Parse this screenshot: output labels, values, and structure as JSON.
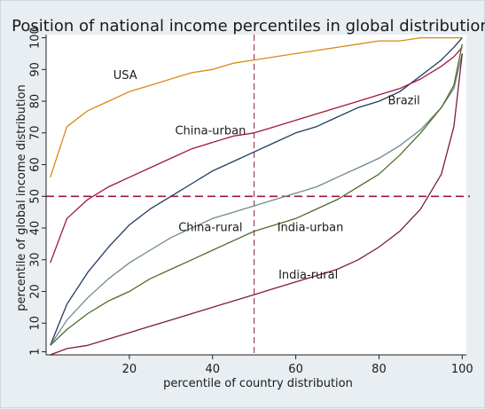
{
  "chart_data": {
    "type": "line",
    "title": "Position of national income percentiles in global distribution",
    "xlabel": "percentile of country distribution",
    "ylabel": "percentile of global income distribution",
    "xlim": [
      0,
      101
    ],
    "ylim": [
      0,
      101
    ],
    "x_ticks": [
      20,
      40,
      60,
      80,
      100
    ],
    "y_ticks": [
      1,
      10,
      20,
      30,
      40,
      50,
      60,
      70,
      80,
      90,
      100
    ],
    "x_tick_labels": [
      "20",
      "40",
      "60",
      "80",
      "100"
    ],
    "y_tick_labels": [
      "1",
      "10",
      "20",
      "30",
      "40",
      "50",
      "60",
      "70",
      "80",
      "90",
      "100"
    ],
    "grid": false,
    "reference_lines": [
      {
        "orientation": "vertical",
        "value": 50,
        "color": "#8b1a4a",
        "style": "dashed"
      },
      {
        "orientation": "horizontal",
        "value": 50,
        "color": "#a0163f",
        "style": "dashed"
      }
    ],
    "x": [
      1,
      5,
      10,
      15,
      20,
      25,
      30,
      35,
      40,
      45,
      50,
      55,
      60,
      65,
      70,
      75,
      80,
      85,
      90,
      95,
      98,
      100
    ],
    "series": [
      {
        "name": "USA",
        "color": "#d98a14",
        "values": [
          56,
          72,
          77,
          80,
          83,
          85,
          87,
          89,
          90,
          92,
          93,
          94,
          95,
          96,
          97,
          98,
          99,
          99,
          100,
          100,
          100,
          100
        ]
      },
      {
        "name": "Brazil",
        "color": "#1f3a5f",
        "values": [
          3,
          16,
          26,
          34,
          41,
          46,
          50,
          54,
          58,
          61,
          64,
          67,
          70,
          72,
          75,
          78,
          80,
          83,
          88,
          93,
          97,
          100
        ]
      },
      {
        "name": "China-urban",
        "color": "#a0163f",
        "values": [
          29,
          43,
          49,
          53,
          56,
          59,
          62,
          65,
          67,
          69,
          70,
          72,
          74,
          76,
          78,
          80,
          82,
          84,
          87,
          91,
          94,
          97
        ]
      },
      {
        "name": "China-rural",
        "color": "#6f8a8c",
        "values": [
          3,
          11,
          18,
          24,
          29,
          33,
          37,
          40,
          43,
          45,
          47,
          49,
          51,
          53,
          56,
          59,
          62,
          66,
          71,
          78,
          84,
          95
        ]
      },
      {
        "name": "India-urban",
        "color": "#4f6b2a",
        "values": [
          3,
          8,
          13,
          17,
          20,
          24,
          27,
          30,
          33,
          36,
          39,
          41,
          43,
          46,
          49,
          53,
          57,
          63,
          70,
          78,
          85,
          98
        ]
      },
      {
        "name": "India-rural",
        "color": "#7a1f35",
        "values": [
          0,
          2,
          3,
          5,
          7,
          9,
          11,
          13,
          15,
          17,
          19,
          21,
          23,
          25,
          27,
          30,
          34,
          39,
          46,
          57,
          72,
          95
        ]
      }
    ],
    "annotations": [
      {
        "text": "USA",
        "x": 19,
        "y": 87
      },
      {
        "text": "Brazil",
        "x": 86,
        "y": 79
      },
      {
        "text": "China-urban",
        "x": 39.5,
        "y": 69.5
      },
      {
        "text": "China-rural",
        "x": 39.5,
        "y": 39
      },
      {
        "text": "India-urban",
        "x": 63.5,
        "y": 39
      },
      {
        "text": "India-rural",
        "x": 63,
        "y": 24
      }
    ]
  }
}
